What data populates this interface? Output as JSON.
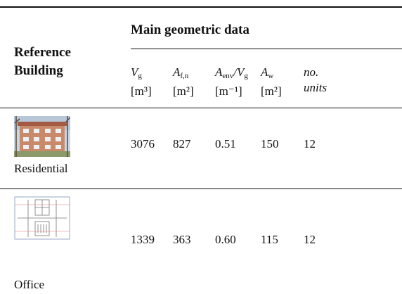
{
  "table": {
    "header": {
      "row_label": "Reference Building",
      "group": "Main geometric data"
    },
    "columns": [
      {
        "symbols": [
          {
            "base": "V",
            "sub": "g"
          }
        ],
        "unit": "[m³]"
      },
      {
        "symbols": [
          {
            "base": "A",
            "sub": "f,n"
          }
        ],
        "unit": "[m²]"
      },
      {
        "symbols": [
          {
            "base": "A",
            "sub": "env"
          },
          {
            "base": "/V",
            "sub": "g"
          }
        ],
        "unit": "[m⁻¹]"
      },
      {
        "symbols": [
          {
            "base": "A",
            "sub": "w"
          }
        ],
        "unit": "[m²]"
      },
      {
        "symbols": [
          {
            "base": "no."
          }
        ],
        "unit": "units"
      }
    ],
    "rows": [
      {
        "label": "Residential",
        "cells": [
          "3076",
          "827",
          "0.51",
          "150",
          "12"
        ]
      },
      {
        "label": "Office",
        "cells": [
          "1339",
          "363",
          "0.60",
          "115",
          "12"
        ]
      }
    ]
  }
}
